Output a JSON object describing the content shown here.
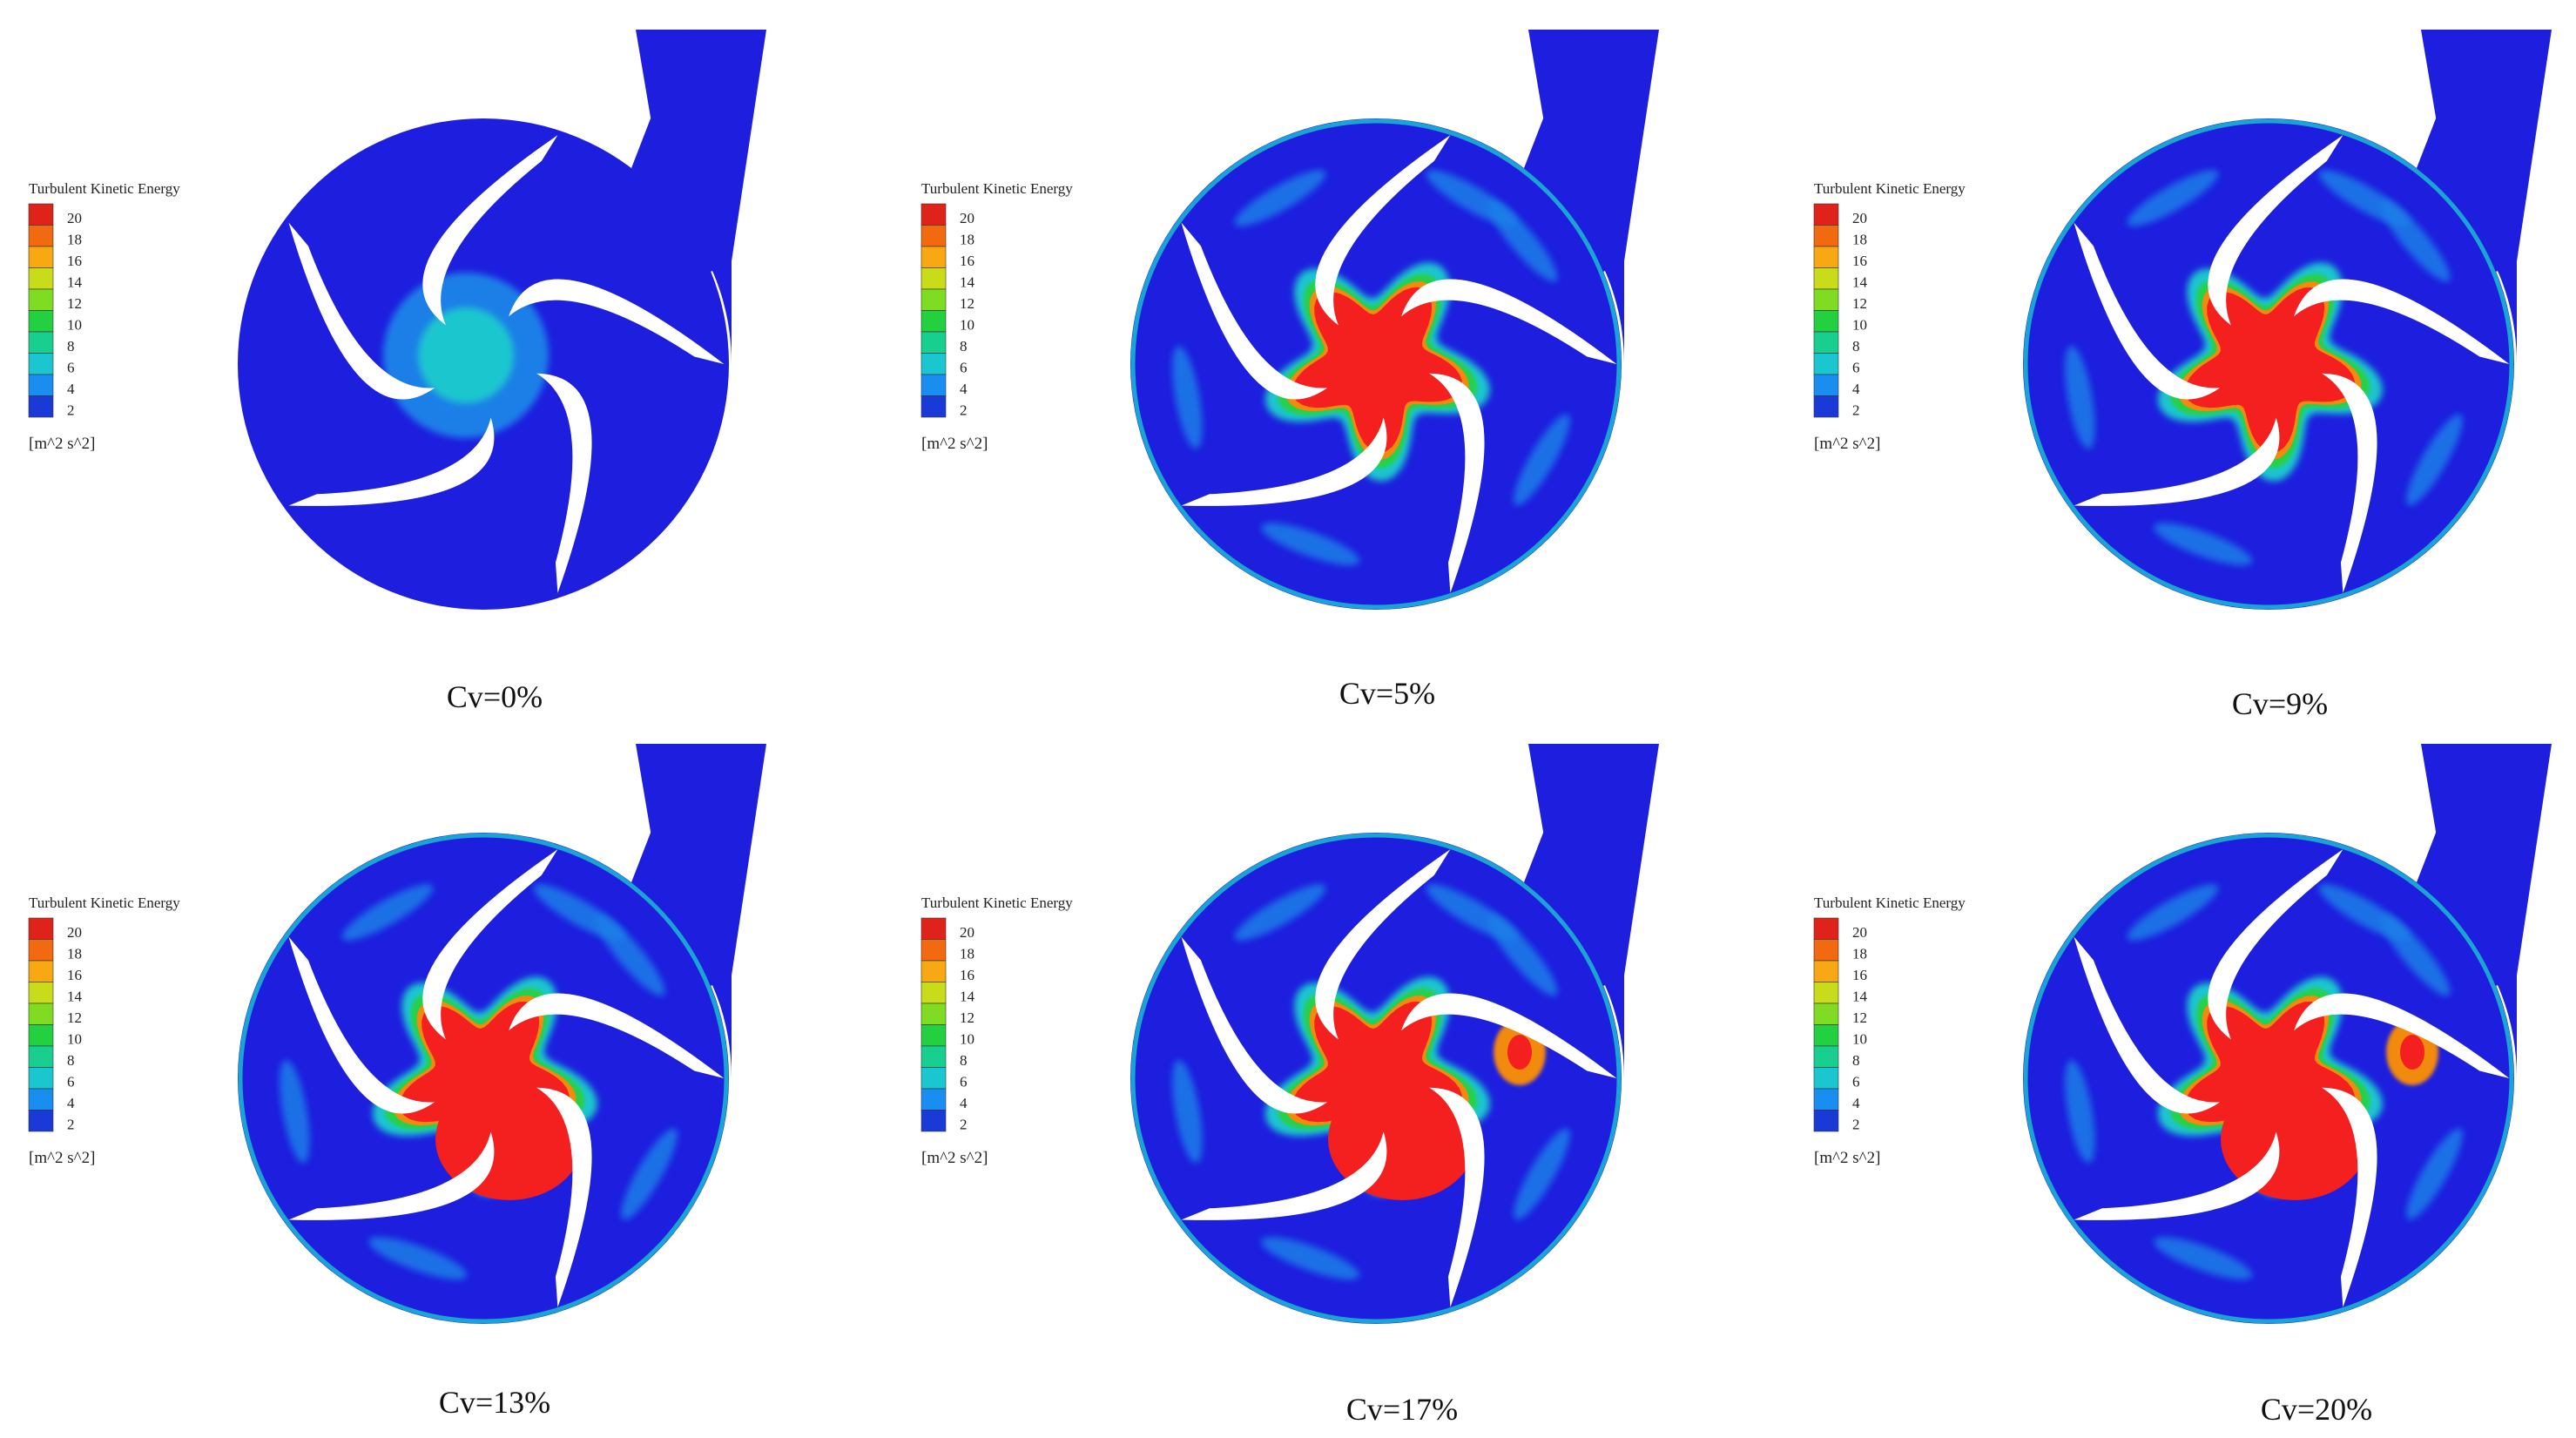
{
  "legend": {
    "title": "Turbulent Kinetic Energy",
    "unit": "[m^2 s^2]",
    "ticks": [
      "20",
      "18",
      "16",
      "14",
      "12",
      "10",
      "8",
      "6",
      "4",
      "2"
    ],
    "colors": [
      "#e0231a",
      "#f26a10",
      "#f7a812",
      "#c8dc1a",
      "#7fdc22",
      "#22d040",
      "#18cf90",
      "#1ac6cf",
      "#1a8ef0",
      "#1a3ad8"
    ]
  },
  "colors": {
    "low": "#1d1ede",
    "mid_low": "#1a7fe8",
    "cyan": "#1ac6cf",
    "green": "#28d04a",
    "yellow": "#c8dc1a",
    "orange": "#f28a10",
    "high": "#f41f1f",
    "blade": "#ffffff"
  },
  "panels": [
    {
      "caption": "Cv=0%",
      "core_level": 0.0
    },
    {
      "caption": "Cv=5%",
      "core_level": 1.0
    },
    {
      "caption": "Cv=9%",
      "core_level": 1.0
    },
    {
      "caption": "Cv=13%",
      "core_level": 1.0
    },
    {
      "caption": "Cv=17%",
      "core_level": 1.0
    },
    {
      "caption": "Cv=20%",
      "core_level": 1.0
    }
  ]
}
